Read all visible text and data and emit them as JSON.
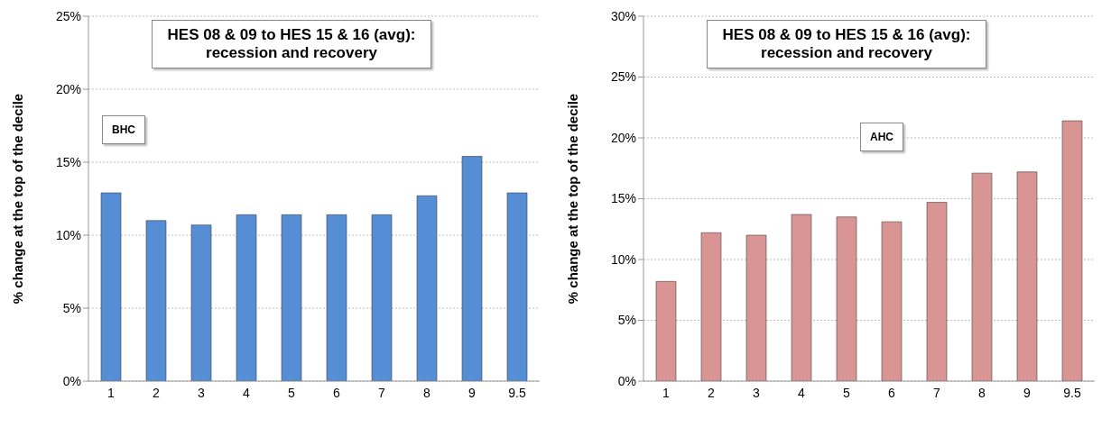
{
  "chart_data": [
    {
      "type": "bar",
      "title": "HES 08 & 09  to  HES 15 & 16 (avg):",
      "subtitle": "recession and recovery",
      "annotations": [
        "BHC"
      ],
      "ylabel": "% change at the top of the decile",
      "categories": [
        "1",
        "2",
        "3",
        "4",
        "5",
        "6",
        "7",
        "8",
        "9",
        "9.5"
      ],
      "values": [
        12.9,
        11.0,
        10.7,
        11.4,
        11.4,
        11.4,
        11.4,
        12.7,
        15.4,
        12.9
      ],
      "color": "#558ed5",
      "ylim": [
        0,
        25
      ],
      "yticks": [
        {
          "value": 0,
          "label": "0%"
        },
        {
          "value": 5,
          "label": "5%"
        },
        {
          "value": 10,
          "label": "10%"
        },
        {
          "value": 15,
          "label": "15%"
        },
        {
          "value": 20,
          "label": "20%"
        },
        {
          "value": 25,
          "label": "25%"
        }
      ],
      "grid": "y"
    },
    {
      "type": "bar",
      "title": "HES 08 & 09  to  HES 15 & 16 (avg):",
      "subtitle": "recession and recovery",
      "annotations": [
        "AHC"
      ],
      "ylabel": "% change at the top of the decile",
      "categories": [
        "1",
        "2",
        "3",
        "4",
        "5",
        "6",
        "7",
        "8",
        "9",
        "9.5"
      ],
      "values": [
        8.2,
        12.2,
        12.0,
        13.7,
        13.5,
        13.1,
        14.7,
        17.1,
        17.2,
        21.4
      ],
      "color": "#d99594",
      "ylim": [
        0,
        30
      ],
      "yticks": [
        {
          "value": 0,
          "label": "0%"
        },
        {
          "value": 5,
          "label": "5%"
        },
        {
          "value": 10,
          "label": "10%"
        },
        {
          "value": 15,
          "label": "15%"
        },
        {
          "value": 20,
          "label": "20%"
        },
        {
          "value": 25,
          "label": "25%"
        },
        {
          "value": 30,
          "label": "30%"
        }
      ],
      "grid": "y"
    }
  ]
}
